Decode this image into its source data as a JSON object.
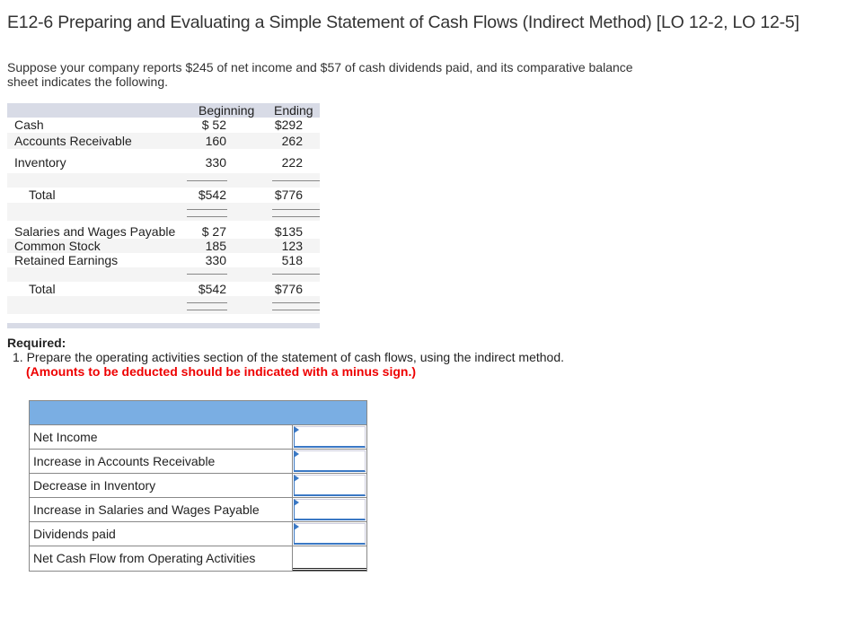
{
  "title": "E12-6 Preparing and Evaluating a Simple Statement of Cash Flows (Indirect Method) [LO 12-2, LO 12-5]",
  "intro": "Suppose your company reports $245 of net income and $57 of cash dividends paid, and its comparative balance sheet indicates the following.",
  "balance_sheet": {
    "headers": {
      "beginning": "Beginning",
      "ending": "Ending"
    },
    "assets": [
      {
        "label": "Cash",
        "beginning": "$ 52",
        "ending": "$292"
      },
      {
        "label": "Accounts Receivable",
        "beginning": "160",
        "ending": "262"
      },
      {
        "label": "Inventory",
        "beginning": "330",
        "ending": "222"
      }
    ],
    "assets_total": {
      "label": "Total",
      "beginning": "$542",
      "ending": "$776"
    },
    "liabilities": [
      {
        "label": "Salaries and Wages Payable",
        "beginning": "$ 27",
        "ending": "$135"
      },
      {
        "label": "Common Stock",
        "beginning": "185",
        "ending": "123"
      },
      {
        "label": "Retained Earnings",
        "beginning": "330",
        "ending": "518"
      }
    ],
    "liabilities_total": {
      "label": "Total",
      "beginning": "$542",
      "ending": "$776"
    }
  },
  "required": {
    "heading": "Required:",
    "item": "1. Prepare the operating activities section of the statement of cash flows, using the indirect method.",
    "note": "(Amounts to be deducted should be indicated with a minus sign.)"
  },
  "answer_table": {
    "rows": [
      {
        "label": "Net Income",
        "value": ""
      },
      {
        "label": "Increase in Accounts Receivable",
        "value": ""
      },
      {
        "label": "Decrease in Inventory",
        "value": ""
      },
      {
        "label": "Increase in Salaries and Wages Payable",
        "value": ""
      },
      {
        "label": "Dividends paid",
        "value": ""
      }
    ],
    "total_label": "Net Cash Flow from Operating Activities"
  },
  "colors": {
    "header_blue": "#7aaee3",
    "note_red": "#e00000",
    "input_border": "#3a78c4"
  }
}
